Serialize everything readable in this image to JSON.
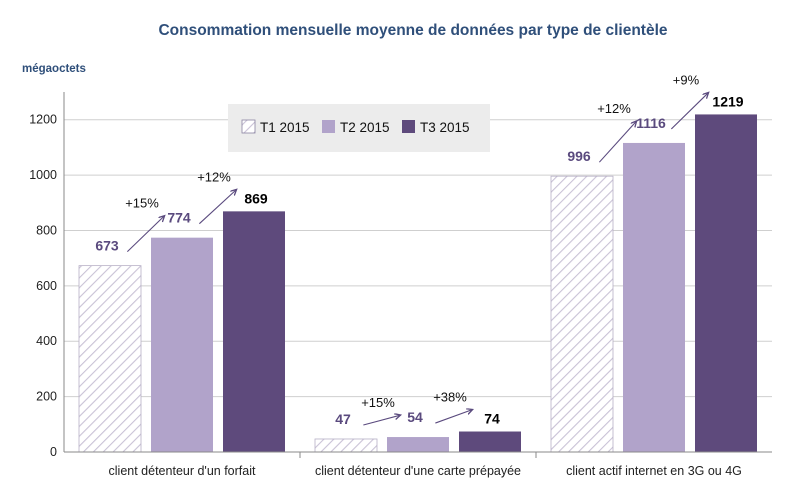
{
  "chart_data": {
    "type": "bar",
    "title": "Consommation mensuelle moyenne de données par type de clientèle",
    "ylabel": "mégaoctets",
    "xlabel": "",
    "ylim": [
      0,
      1300
    ],
    "yticks": [
      "0",
      "200",
      "400",
      "600",
      "800",
      "1000",
      "1200"
    ],
    "grid": true,
    "legend_position": "top-center",
    "categories": [
      "client détenteur d'un forfait",
      "client détenteur d'une carte prépayée",
      "client actif internet en 3G ou 4G"
    ],
    "series": [
      {
        "name": "T1 2015",
        "values": [
          673,
          47,
          996
        ],
        "labels": [
          "673",
          "47",
          "996"
        ],
        "color": "#ffffff",
        "pattern": "hatched",
        "label_color": "#5a4a7e"
      },
      {
        "name": "T2 2015",
        "values": [
          774,
          54,
          1116
        ],
        "labels": [
          "774",
          "54",
          "1116"
        ],
        "color": "#b1a3ca",
        "label_color": "#5a4a7e"
      },
      {
        "name": "T3 2015",
        "values": [
          869,
          74,
          1219
        ],
        "labels": [
          "869",
          "74",
          "1219"
        ],
        "color": "#5e4a7c",
        "label_color": "#000000"
      }
    ],
    "growth_annotations": [
      [
        "+15%",
        "+12%"
      ],
      [
        "+15%",
        "+38%"
      ],
      [
        "+12%",
        "+9%"
      ]
    ]
  }
}
